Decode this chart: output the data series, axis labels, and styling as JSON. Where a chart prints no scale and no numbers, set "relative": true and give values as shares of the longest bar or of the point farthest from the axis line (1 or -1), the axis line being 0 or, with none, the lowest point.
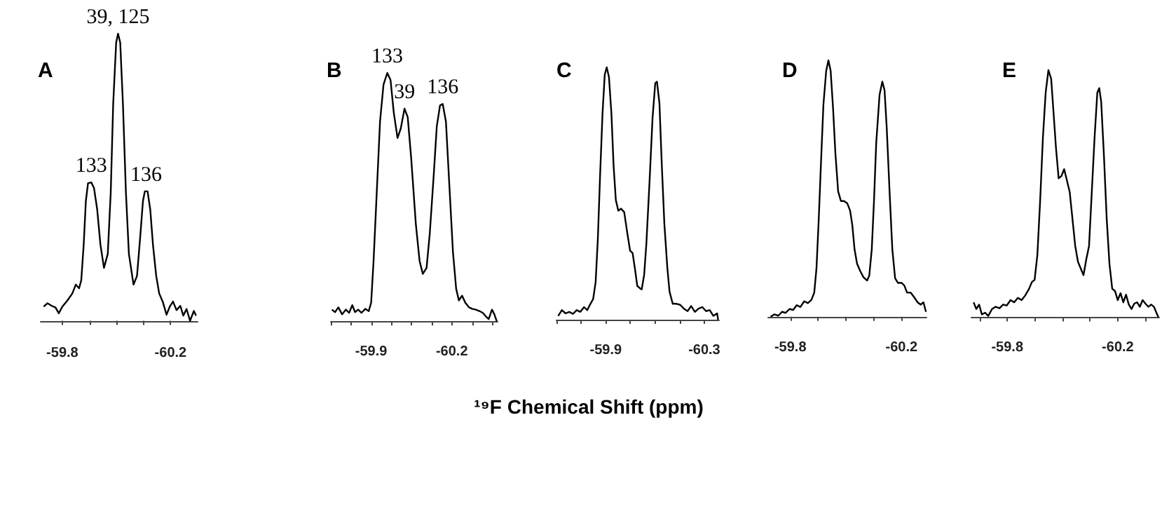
{
  "chart_data": [
    {
      "type": "line",
      "title": "A",
      "relative": true,
      "xlim": [
        -59.72,
        -60.3
      ],
      "xticks": [
        -59.8,
        {
          "value": -59.9,
          "label": null
        },
        {
          "value": -60.0,
          "label": null
        },
        {
          "value": -60.1,
          "label": null
        },
        -60.2
      ],
      "annotations": [
        {
          "text": "39, 125",
          "x": -60.006,
          "y": 1
        },
        {
          "text": "133",
          "x": -59.907,
          "y": 0.482
        },
        {
          "text": "136",
          "x": -60.11,
          "y": 0.451
        }
      ],
      "series": [
        {
          "color": "#000000",
          "x": [
            -59.731,
            -59.745,
            -59.761,
            -59.775,
            -59.787,
            -59.8,
            -59.82,
            -59.837,
            -59.85,
            -59.862,
            -59.87,
            -59.879,
            -59.887,
            -59.895,
            -59.907,
            -59.917,
            -59.929,
            -59.941,
            -59.954,
            -59.968,
            -59.979,
            -59.988,
            -59.999,
            -60.006,
            -60.014,
            -60.024,
            -60.035,
            -60.046,
            -60.063,
            -60.076,
            -60.088,
            -60.098,
            -60.105,
            -60.115,
            -60.125,
            -60.135,
            -60.147,
            -60.158,
            -60.172,
            -60.185,
            -60.197,
            -60.209,
            -60.222,
            -60.236,
            -60.247,
            -60.259,
            -60.272,
            -60.286,
            -60.294
          ],
          "values": [
            0.049,
            0.061,
            0.052,
            0.046,
            0.026,
            0.049,
            0.072,
            0.095,
            0.126,
            0.113,
            0.141,
            0.264,
            0.417,
            0.479,
            0.482,
            0.463,
            0.387,
            0.264,
            0.184,
            0.233,
            0.448,
            0.755,
            0.969,
            1,
            0.969,
            0.755,
            0.448,
            0.233,
            0.126,
            0.156,
            0.294,
            0.417,
            0.451,
            0.451,
            0.387,
            0.264,
            0.156,
            0.095,
            0.064,
            0.021,
            0.049,
            0.067,
            0.037,
            0.052,
            0.018,
            0.041,
            0,
            0.034,
            0.018
          ]
        }
      ]
    },
    {
      "type": "line",
      "title": "B",
      "relative": true,
      "xlim": [
        -59.75,
        -60.37
      ],
      "xticks": [
        {
          "value": -59.75,
          "label": null
        },
        {
          "value": -59.825,
          "label": null
        },
        -59.9,
        {
          "value": -59.975,
          "label": null
        },
        {
          "value": -60.05,
          "label": null
        },
        {
          "value": -60.125,
          "label": null
        },
        -60.2,
        {
          "value": -60.275,
          "label": null
        },
        {
          "value": -60.35,
          "label": null
        }
      ],
      "annotations": [
        {
          "text": "133",
          "x": -59.96,
          "y": 1
        },
        {
          "text": "39",
          "x": -60.024,
          "y": 0.856
        },
        {
          "text": "136",
          "x": -60.166,
          "y": 0.875
        }
      ],
      "series": [
        {
          "color": "#000000",
          "x": [
            -59.754,
            -59.766,
            -59.778,
            -59.792,
            -59.806,
            -59.818,
            -59.83,
            -59.84,
            -59.852,
            -59.864,
            -59.878,
            -59.891,
            -59.9,
            -59.909,
            -59.921,
            -59.933,
            -59.946,
            -59.96,
            -59.972,
            -59.984,
            -59.998,
            -60.01,
            -60.024,
            -60.036,
            -60.049,
            -60.066,
            -60.08,
            -60.092,
            -60.106,
            -60.118,
            -60.132,
            -60.144,
            -60.156,
            -60.166,
            -60.178,
            -60.19,
            -60.204,
            -60.216,
            -60.226,
            -60.238,
            -60.25,
            -60.264,
            -60.276,
            -60.289,
            -60.303,
            -60.315,
            -60.327,
            -60.337,
            -60.349,
            -60.358,
            -60.367
          ],
          "values": [
            0.047,
            0.037,
            0.056,
            0.028,
            0.047,
            0.034,
            0.065,
            0.037,
            0.047,
            0.034,
            0.05,
            0.041,
            0.075,
            0.243,
            0.523,
            0.804,
            0.953,
            1,
            0.972,
            0.841,
            0.738,
            0.776,
            0.856,
            0.822,
            0.654,
            0.393,
            0.243,
            0.191,
            0.215,
            0.355,
            0.579,
            0.785,
            0.869,
            0.875,
            0.804,
            0.561,
            0.28,
            0.131,
            0.084,
            0.103,
            0.075,
            0.056,
            0.05,
            0.047,
            0.041,
            0.034,
            0.019,
            0.009,
            0.047,
            0.028,
            0
          ]
        }
      ]
    },
    {
      "type": "line",
      "title": "C",
      "xlabel": "¹⁹F Chemical Shift (ppm)",
      "relative": true,
      "xlim": [
        -59.7,
        -60.36
      ],
      "xticks": [
        {
          "value": -59.7,
          "label": null
        },
        {
          "value": -59.8,
          "label": null
        },
        -59.9,
        {
          "value": -60.0,
          "label": null
        },
        {
          "value": -60.1,
          "label": null
        },
        {
          "value": -60.2,
          "label": null
        },
        -60.3
      ],
      "series": [
        {
          "color": "#000000",
          "x": [
            -59.707,
            -59.722,
            -59.737,
            -59.752,
            -59.767,
            -59.782,
            -59.797,
            -59.812,
            -59.825,
            -59.838,
            -59.849,
            -59.859,
            -59.868,
            -59.877,
            -59.887,
            -59.896,
            -59.904,
            -59.913,
            -59.923,
            -59.932,
            -59.941,
            -59.951,
            -59.962,
            -59.975,
            -59.988,
            -59.999,
            -60.009,
            -60.018,
            -60.028,
            -60.037,
            -60.046,
            -60.056,
            -60.065,
            -60.078,
            -60.09,
            -60.101,
            -60.108,
            -60.118,
            -60.127,
            -60.138,
            -60.15,
            -60.159,
            -60.172,
            -60.187,
            -60.202,
            -60.217,
            -60.232,
            -60.247,
            -60.262,
            -60.277,
            -60.292,
            -60.307,
            -60.322,
            -60.337,
            -60.352,
            -60.356
          ],
          "values": [
            0.015,
            0.038,
            0.025,
            0.031,
            0.023,
            0.038,
            0.031,
            0.05,
            0.038,
            0.063,
            0.082,
            0.149,
            0.321,
            0.57,
            0.818,
            0.971,
            1,
            0.962,
            0.818,
            0.608,
            0.474,
            0.432,
            0.44,
            0.426,
            0.34,
            0.273,
            0.264,
            0.206,
            0.134,
            0.126,
            0.12,
            0.178,
            0.302,
            0.551,
            0.799,
            0.937,
            0.943,
            0.857,
            0.627,
            0.379,
            0.206,
            0.111,
            0.063,
            0.063,
            0.059,
            0.044,
            0.034,
            0.054,
            0.031,
            0.044,
            0.05,
            0.034,
            0.038,
            0.015,
            0.025,
            0
          ]
        }
      ]
    },
    {
      "type": "line",
      "title": "D",
      "relative": true,
      "xlim": [
        -59.72,
        -60.29
      ],
      "xticks": [
        -59.8,
        {
          "value": -59.9,
          "label": null
        },
        {
          "value": -60.0,
          "label": null
        },
        {
          "value": -60.1,
          "label": null
        },
        -60.2
      ],
      "series": [
        {
          "color": "#000000",
          "x": [
            -59.729,
            -59.742,
            -59.757,
            -59.77,
            -59.783,
            -59.797,
            -59.81,
            -59.823,
            -59.836,
            -59.85,
            -59.863,
            -59.876,
            -59.886,
            -59.894,
            -59.902,
            -59.911,
            -59.919,
            -59.929,
            -59.937,
            -59.945,
            -59.954,
            -59.962,
            -59.972,
            -59.982,
            -59.993,
            -60.005,
            -60.015,
            -60.023,
            -60.031,
            -60.04,
            -60.051,
            -60.063,
            -60.076,
            -60.084,
            -60.093,
            -60.101,
            -60.109,
            -60.121,
            -60.131,
            -60.139,
            -60.147,
            -60.157,
            -60.167,
            -60.177,
            -60.187,
            -60.2,
            -60.21,
            -60.22,
            -60.233,
            -60.246,
            -60.258,
            -60.269,
            -60.279,
            -60.288
          ],
          "values": [
            0,
            0.009,
            0.004,
            0.019,
            0.015,
            0.03,
            0.026,
            0.045,
            0.038,
            0.06,
            0.053,
            0.066,
            0.094,
            0.188,
            0.376,
            0.62,
            0.827,
            0.959,
            1,
            0.959,
            0.808,
            0.639,
            0.489,
            0.451,
            0.451,
            0.442,
            0.414,
            0.357,
            0.263,
            0.207,
            0.179,
            0.154,
            0.141,
            0.16,
            0.263,
            0.451,
            0.677,
            0.865,
            0.917,
            0.883,
            0.733,
            0.489,
            0.263,
            0.15,
            0.132,
            0.132,
            0.122,
            0.094,
            0.094,
            0.075,
            0.056,
            0.047,
            0.056,
            0.019
          ]
        }
      ]
    },
    {
      "type": "line",
      "title": "E",
      "relative": true,
      "xlim": [
        -59.67,
        -60.35
      ],
      "xticks": [
        {
          "value": -59.7,
          "label": null
        },
        -59.8,
        {
          "value": -59.9,
          "label": null
        },
        {
          "value": -60.0,
          "label": null
        },
        {
          "value": -60.1,
          "label": null
        },
        -60.2,
        {
          "value": -60.3,
          "label": null
        }
      ],
      "series": [
        {
          "color": "#000000",
          "x": [
            -59.678,
            -59.688,
            -59.698,
            -59.708,
            -59.72,
            -59.731,
            -59.745,
            -59.758,
            -59.772,
            -59.785,
            -59.798,
            -59.812,
            -59.825,
            -59.838,
            -59.852,
            -59.865,
            -59.879,
            -59.889,
            -59.899,
            -59.909,
            -59.919,
            -59.929,
            -59.939,
            -59.949,
            -59.959,
            -59.967,
            -59.976,
            -59.986,
            -59.996,
            -60.006,
            -60.016,
            -60.026,
            -60.036,
            -60.046,
            -60.056,
            -60.066,
            -60.076,
            -60.086,
            -60.096,
            -60.106,
            -60.116,
            -60.126,
            -60.133,
            -60.14,
            -60.15,
            -60.16,
            -60.17,
            -60.18,
            -60.19,
            -60.2,
            -60.21,
            -60.22,
            -60.23,
            -60.24,
            -60.25,
            -60.26,
            -60.27,
            -60.28,
            -60.29,
            -60.3,
            -60.311,
            -60.321,
            -60.331,
            -60.341,
            -60.347
          ],
          "values": [
            0.06,
            0.033,
            0.051,
            0.011,
            0.018,
            0.005,
            0.033,
            0.042,
            0.036,
            0.051,
            0.047,
            0.069,
            0.06,
            0.078,
            0.069,
            0.088,
            0.115,
            0.142,
            0.151,
            0.252,
            0.471,
            0.726,
            0.909,
            1,
            0.964,
            0.836,
            0.69,
            0.562,
            0.571,
            0.599,
            0.553,
            0.507,
            0.398,
            0.288,
            0.224,
            0.197,
            0.17,
            0.234,
            0.288,
            0.507,
            0.726,
            0.909,
            0.927,
            0.872,
            0.653,
            0.398,
            0.215,
            0.115,
            0.106,
            0.069,
            0.097,
            0.06,
            0.091,
            0.051,
            0.033,
            0.055,
            0.06,
            0.042,
            0.069,
            0.055,
            0.042,
            0.051,
            0.042,
            0.015,
            0
          ]
        }
      ]
    }
  ]
}
